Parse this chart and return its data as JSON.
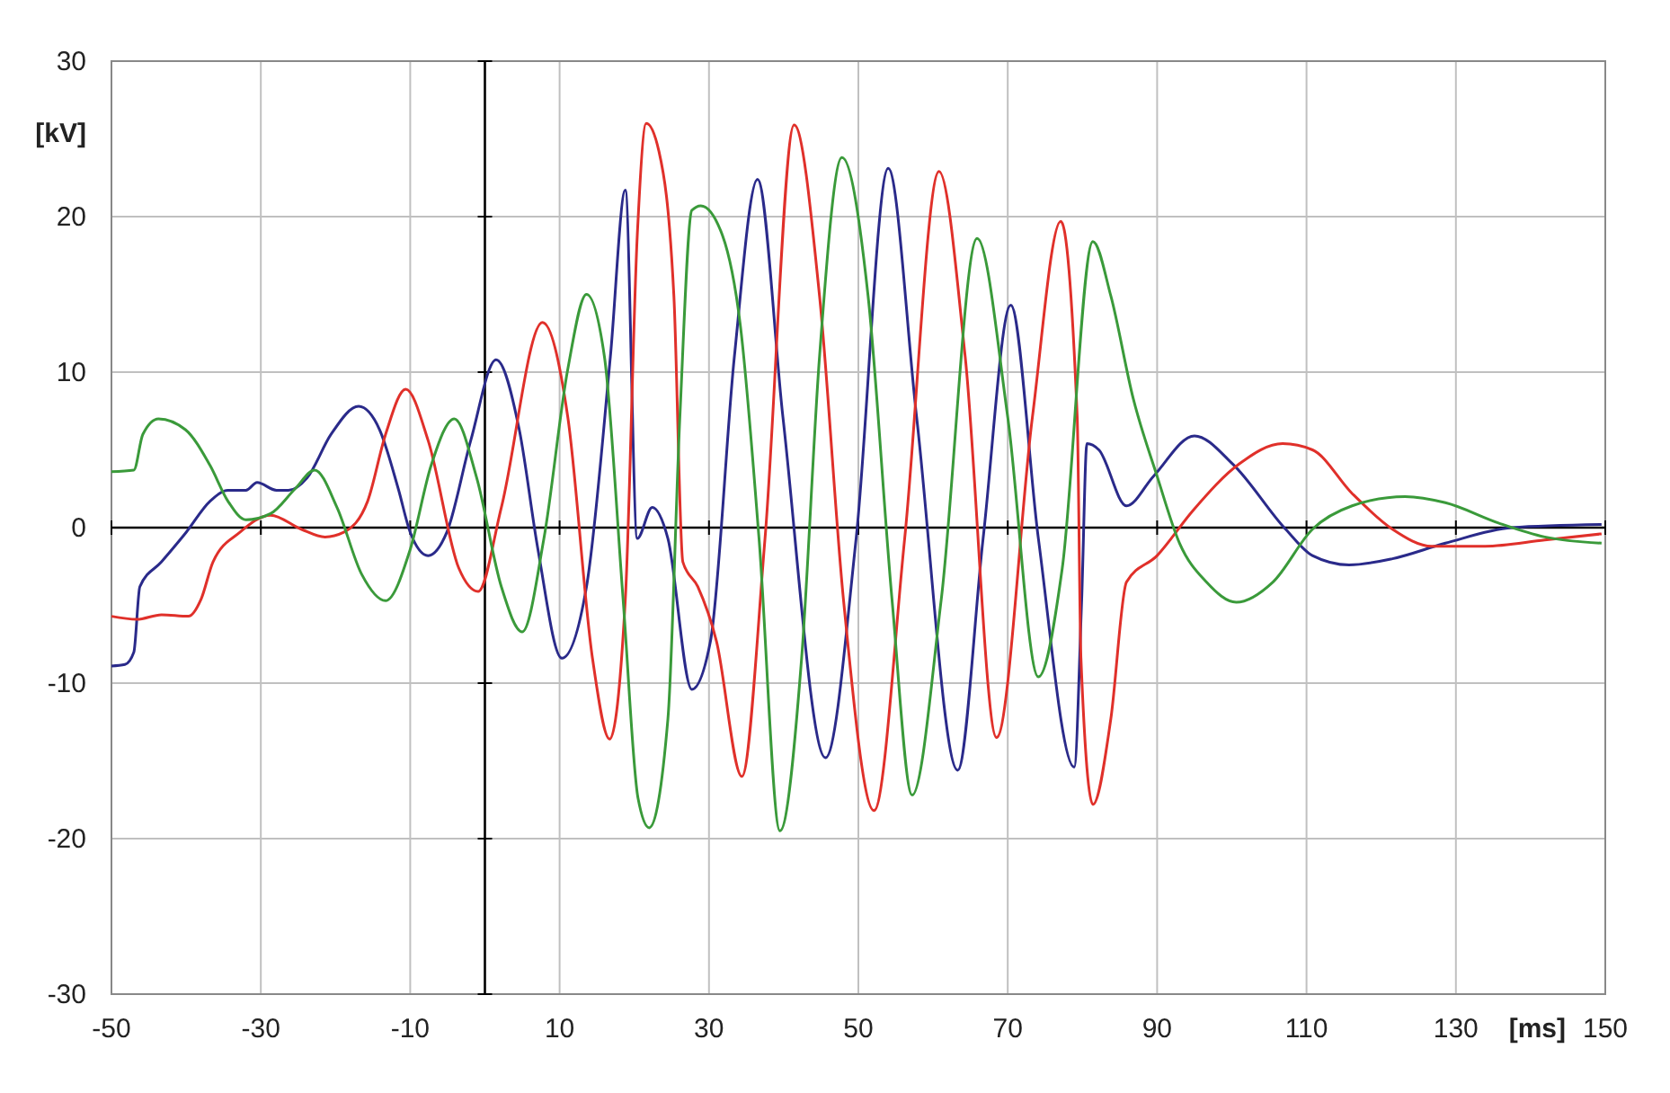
{
  "chart_data": {
    "type": "line",
    "xlabel": "[ms]",
    "ylabel": "[kV]",
    "xlim": [
      -50,
      150
    ],
    "ylim": [
      -30,
      30
    ],
    "xticks": [
      -50,
      -30,
      -10,
      10,
      30,
      50,
      70,
      90,
      110,
      130,
      150
    ],
    "yticks": [
      -30,
      -20,
      -10,
      0,
      10,
      20,
      30
    ],
    "grid": true,
    "series": [
      {
        "color": "#2a2a8a",
        "x": [
          -50,
          -48.2,
          -47,
          -46.2,
          -43.3,
          -40,
          -36.8,
          -34.4,
          -32,
          -30.5,
          -27.9,
          -26.3,
          -23.8,
          -20.6,
          -16.9,
          -14.1,
          -11.6,
          -10,
          -7.6,
          -5.1,
          -1.9,
          1.5,
          4.6,
          7.1,
          10.3,
          13.6,
          16.8,
          18.8,
          20.4,
          22.4,
          24.5,
          27.7,
          30.2,
          33.4,
          36.5,
          39.9,
          45.6,
          49.7,
          54,
          57.8,
          63.3,
          66.7,
          70.4,
          74.1,
          78.9,
          79.9,
          80.6,
          82.2,
          85.9,
          89.5,
          95,
          100.1,
          107.2,
          110.8,
          115.7,
          121.5,
          128.6,
          137.5,
          149.5
        ],
        "values": [
          -8.9,
          -8.8,
          -8,
          -3.8,
          -2.2,
          -0.3,
          1.7,
          2.4,
          2.4,
          2.9,
          2.4,
          2.4,
          3.2,
          6,
          7.8,
          6.3,
          2.5,
          -0.3,
          -1.8,
          -0.3,
          5.6,
          10.8,
          6.3,
          -1.4,
          -8.4,
          -3.8,
          11,
          21.7,
          -0.7,
          1.3,
          -0.7,
          -10.4,
          -7.3,
          11,
          22.4,
          7.1,
          -14.8,
          -0.7,
          23.1,
          7.1,
          -15.6,
          -0.7,
          14.3,
          -0.7,
          -15.4,
          -4.6,
          5.4,
          5,
          1.4,
          3.3,
          5.9,
          4.1,
          -0.1,
          -1.8,
          -2.4,
          -2,
          -1,
          0,
          0.2
        ]
      },
      {
        "color": "#e0302a",
        "x": [
          -50,
          -46.6,
          -43.3,
          -39.7,
          -38,
          -36.4,
          -32.8,
          -28.7,
          -24.6,
          -21.4,
          -18.9,
          -15.7,
          -13.3,
          -10.6,
          -7.6,
          -3.5,
          -0.9,
          2.2,
          7.7,
          11.1,
          14.4,
          16.7,
          18.8,
          20.4,
          21.6,
          23.3,
          25.3,
          26.5,
          28.5,
          31,
          34.4,
          37.5,
          41.4,
          44.8,
          48,
          52.1,
          56.2,
          60.8,
          64.3,
          68.5,
          73.3,
          77.1,
          79.3,
          79.8,
          81.4,
          83.8,
          85.9,
          90,
          94.8,
          101,
          106.8,
          110.8,
          116.1,
          121.5,
          126.8,
          133.9,
          141.9,
          149.5
        ],
        "values": [
          -5.7,
          -5.9,
          -5.6,
          -5.7,
          -4.6,
          -2.2,
          -0.3,
          0.8,
          -0.1,
          -0.6,
          -0.3,
          1.7,
          6,
          8.9,
          5.6,
          -2.6,
          -4.1,
          1.3,
          13.2,
          7.1,
          -8.4,
          -13.6,
          -4.6,
          18.8,
          26,
          24.2,
          14.9,
          -2.2,
          -3.8,
          -7.3,
          -16,
          -0.7,
          25.9,
          14.9,
          -4.6,
          -18.2,
          -0.7,
          22.9,
          11,
          -13.5,
          7.1,
          19.7,
          7.1,
          -8.4,
          -17.8,
          -12.3,
          -3.5,
          -1.8,
          1.1,
          4.1,
          5.4,
          5,
          2.2,
          -0.1,
          -1.2,
          -1.2,
          -0.8,
          -0.4
        ]
      },
      {
        "color": "#3a9a3a",
        "x": [
          -50,
          -47,
          -45.8,
          -43.7,
          -40.1,
          -36.8,
          -34.4,
          -32,
          -28.7,
          -25.4,
          -22.8,
          -19.8,
          -16.5,
          -13.3,
          -10,
          -7.2,
          -4.1,
          -1.1,
          2.2,
          5,
          7.9,
          11.1,
          13.6,
          16,
          18.5,
          20.5,
          22,
          24.5,
          26.1,
          27.7,
          28.9,
          31.8,
          34.2,
          36.7,
          39.5,
          42.4,
          44.8,
          47.8,
          51.3,
          54.5,
          57.2,
          61.1,
          65.9,
          70,
          74.1,
          77.3,
          81.4,
          83.8,
          86.8,
          90,
          93,
          96.6,
          100.6,
          105.5,
          110.8,
          116.1,
          123.2,
          128.6,
          135.7,
          141.9,
          149.5
        ],
        "values": [
          3.6,
          3.7,
          6,
          7,
          6.3,
          4,
          1.7,
          0.5,
          0.9,
          2.5,
          3.7,
          1.3,
          -3,
          -4.7,
          -1.4,
          4,
          7,
          3.2,
          -3.8,
          -6.7,
          -0.7,
          10.2,
          15,
          11,
          -4.6,
          -17.4,
          -19.3,
          -12.3,
          7.1,
          20.4,
          20.7,
          18.8,
          13,
          -0.7,
          -19.5,
          -8.4,
          11,
          23.8,
          14.9,
          -4.6,
          -17.2,
          -4.6,
          18.6,
          7.1,
          -9.6,
          -2.6,
          18.4,
          14.9,
          8.3,
          3.3,
          -1,
          -3.5,
          -4.8,
          -3.5,
          -0.1,
          1.4,
          2,
          1.6,
          0.3,
          -0.6,
          -1
        ]
      }
    ]
  }
}
